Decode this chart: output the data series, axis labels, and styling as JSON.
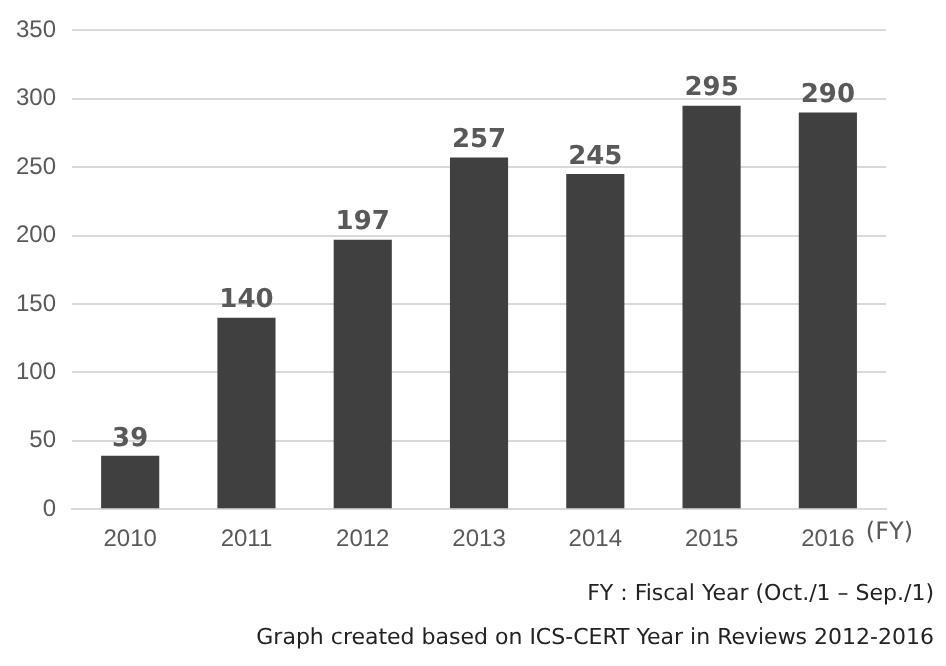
{
  "chart_data": {
    "type": "bar",
    "categories": [
      "2010",
      "2011",
      "2012",
      "2013",
      "2014",
      "2015",
      "2016"
    ],
    "values": [
      39,
      140,
      197,
      257,
      245,
      295,
      290
    ],
    "color": "#404040",
    "ylim": [
      0,
      350
    ],
    "yticks": [
      0,
      50,
      100,
      150,
      200,
      250,
      300,
      350
    ],
    "grid": "y",
    "data_labels": true,
    "legend": false,
    "annotations": [
      "(FY)",
      "FY : Fiscal Year (Oct./1 – Sep./1)",
      "Graph created based on ICS-CERT Year in Reviews 2012-2016"
    ]
  }
}
